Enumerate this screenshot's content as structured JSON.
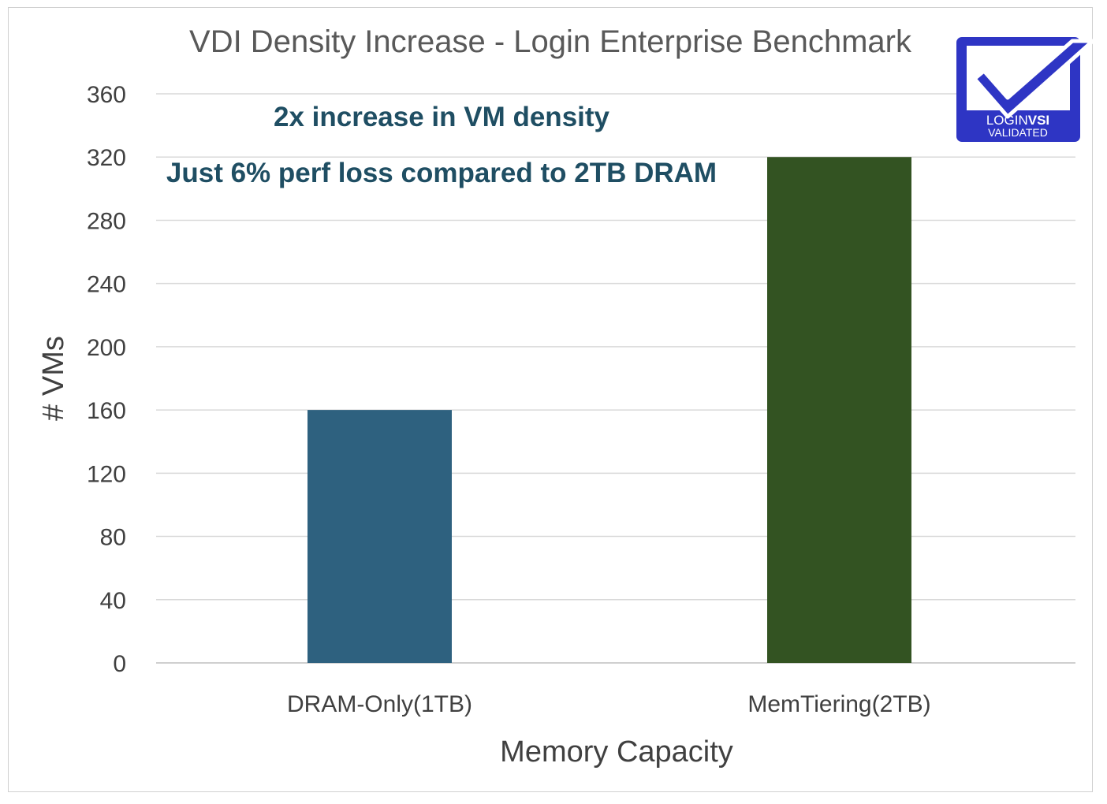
{
  "chart_data": {
    "type": "bar",
    "title": "VDI Density Increase - Login Enterprise Benchmark",
    "xlabel": "Memory Capacity",
    "ylabel": "# VMs",
    "categories": [
      "DRAM-Only(1TB)",
      "MemTiering(2TB)"
    ],
    "values": [
      160,
      320
    ],
    "bar_colors": [
      "#2e617f",
      "#335322"
    ],
    "ylim": [
      0,
      360
    ],
    "yticks": [
      "0",
      "40",
      "80",
      "120",
      "160",
      "200",
      "240",
      "280",
      "320",
      "360"
    ],
    "grid": true,
    "legend": "none",
    "annotations": [
      "2x increase in VM density",
      "Just 6% perf loss compared to 2TB DRAM"
    ]
  },
  "logo": {
    "line1_regular": "LOGIN",
    "line1_bold": "VSI",
    "line2": "VALIDATED",
    "color": "#2e35c4"
  }
}
